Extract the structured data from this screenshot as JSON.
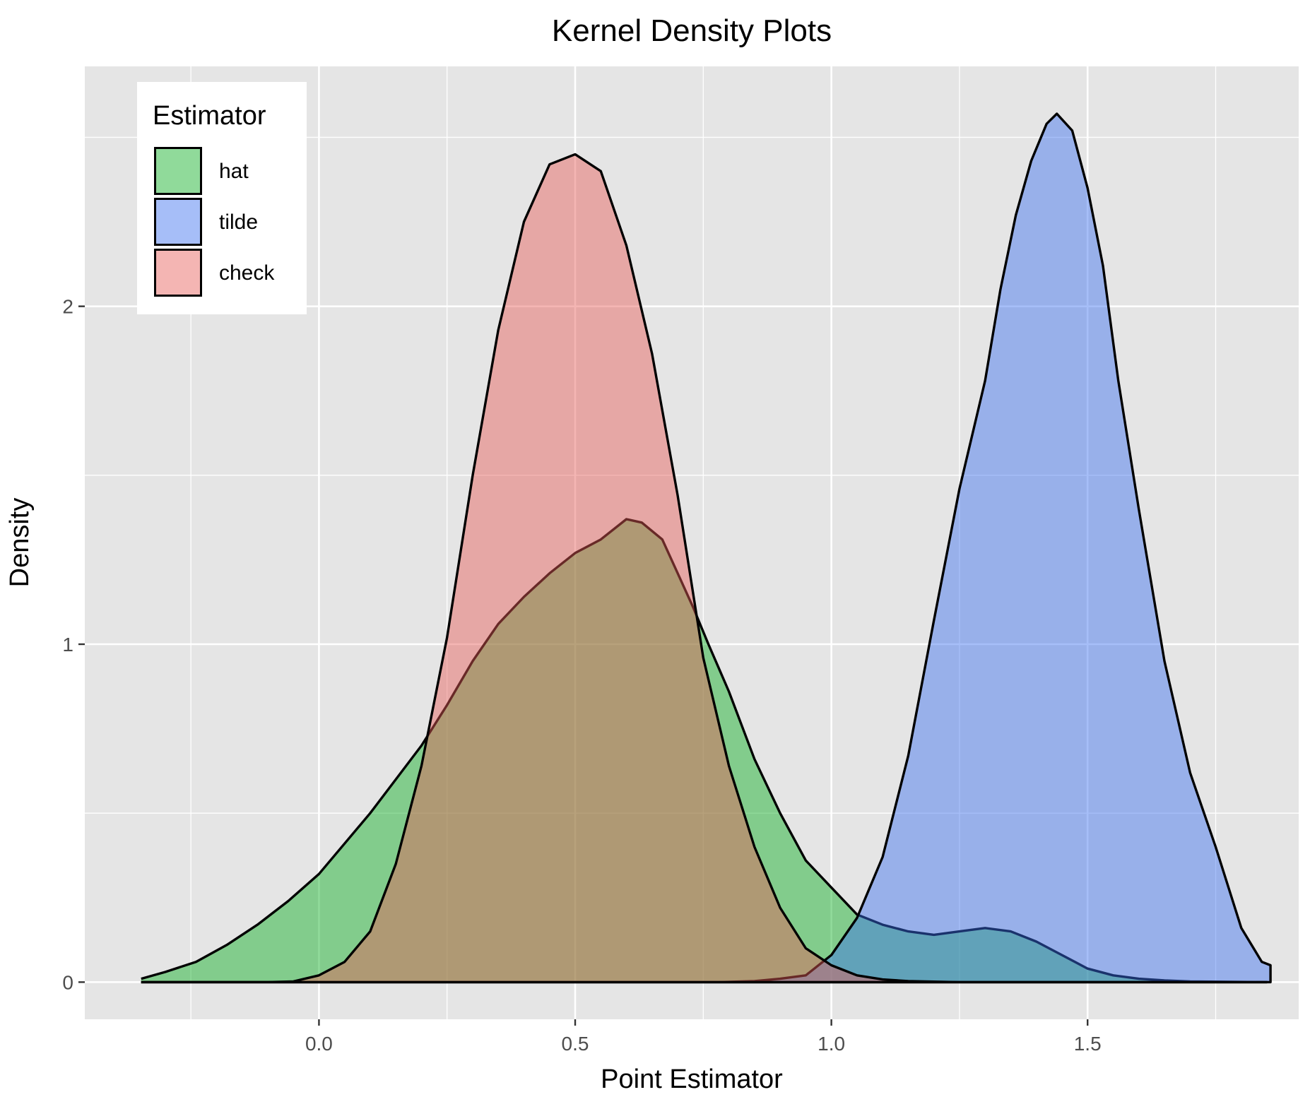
{
  "chart_data": {
    "type": "area",
    "title": "Kernel Density Plots",
    "xlabel": "Point Estimator",
    "ylabel": "Density",
    "xlim": [
      -0.457,
      1.912
    ],
    "ylim": [
      -0.11,
      2.71
    ],
    "x_ticks": [
      0.0,
      0.5,
      1.0,
      1.5
    ],
    "x_tick_labels": [
      "0.0",
      "0.5",
      "1.0",
      "1.5"
    ],
    "y_ticks": [
      0,
      1,
      2
    ],
    "y_tick_labels": [
      "0",
      "1",
      "2"
    ],
    "grid": true,
    "legend": {
      "title": "Estimator",
      "position": "top-left"
    },
    "series": [
      {
        "name": "hat",
        "color": "#09ae1f",
        "points": [
          [
            -0.347,
            0.01
          ],
          [
            -0.3,
            0.03
          ],
          [
            -0.24,
            0.06
          ],
          [
            -0.18,
            0.11
          ],
          [
            -0.12,
            0.17
          ],
          [
            -0.06,
            0.24
          ],
          [
            0.0,
            0.32
          ],
          [
            0.05,
            0.41
          ],
          [
            0.1,
            0.5
          ],
          [
            0.15,
            0.6
          ],
          [
            0.2,
            0.7
          ],
          [
            0.25,
            0.82
          ],
          [
            0.3,
            0.95
          ],
          [
            0.35,
            1.06
          ],
          [
            0.4,
            1.14
          ],
          [
            0.45,
            1.21
          ],
          [
            0.5,
            1.27
          ],
          [
            0.55,
            1.31
          ],
          [
            0.6,
            1.37
          ],
          [
            0.63,
            1.36
          ],
          [
            0.67,
            1.31
          ],
          [
            0.7,
            1.21
          ],
          [
            0.73,
            1.11
          ],
          [
            0.76,
            1.0
          ],
          [
            0.8,
            0.86
          ],
          [
            0.85,
            0.66
          ],
          [
            0.9,
            0.5
          ],
          [
            0.95,
            0.36
          ],
          [
            1.0,
            0.28
          ],
          [
            1.05,
            0.2
          ],
          [
            1.1,
            0.17
          ],
          [
            1.15,
            0.15
          ],
          [
            1.2,
            0.14
          ],
          [
            1.25,
            0.15
          ],
          [
            1.3,
            0.16
          ],
          [
            1.35,
            0.15
          ],
          [
            1.4,
            0.12
          ],
          [
            1.45,
            0.08
          ],
          [
            1.5,
            0.04
          ],
          [
            1.55,
            0.02
          ],
          [
            1.6,
            0.01
          ],
          [
            1.65,
            0.005
          ],
          [
            1.7,
            0.002
          ],
          [
            1.85,
            0.0
          ]
        ]
      },
      {
        "name": "tilde",
        "color": "#3a6ff0",
        "points": [
          [
            -0.347,
            0.0
          ],
          [
            0.78,
            0.0
          ],
          [
            0.85,
            0.003
          ],
          [
            0.9,
            0.01
          ],
          [
            0.95,
            0.02
          ],
          [
            1.0,
            0.08
          ],
          [
            1.05,
            0.19
          ],
          [
            1.1,
            0.37
          ],
          [
            1.15,
            0.67
          ],
          [
            1.2,
            1.07
          ],
          [
            1.25,
            1.46
          ],
          [
            1.3,
            1.78
          ],
          [
            1.33,
            2.05
          ],
          [
            1.36,
            2.27
          ],
          [
            1.39,
            2.43
          ],
          [
            1.42,
            2.54
          ],
          [
            1.44,
            2.57
          ],
          [
            1.47,
            2.52
          ],
          [
            1.5,
            2.35
          ],
          [
            1.53,
            2.12
          ],
          [
            1.56,
            1.78
          ],
          [
            1.6,
            1.4
          ],
          [
            1.65,
            0.95
          ],
          [
            1.7,
            0.62
          ],
          [
            1.75,
            0.4
          ],
          [
            1.8,
            0.16
          ],
          [
            1.84,
            0.06
          ],
          [
            1.857,
            0.05
          ]
        ]
      },
      {
        "name": "check",
        "color": "#e65c56",
        "points": [
          [
            -0.347,
            0.0
          ],
          [
            -0.1,
            0.0
          ],
          [
            -0.05,
            0.002
          ],
          [
            0.0,
            0.02
          ],
          [
            0.05,
            0.06
          ],
          [
            0.1,
            0.15
          ],
          [
            0.15,
            0.35
          ],
          [
            0.2,
            0.64
          ],
          [
            0.25,
            1.02
          ],
          [
            0.3,
            1.5
          ],
          [
            0.35,
            1.93
          ],
          [
            0.4,
            2.25
          ],
          [
            0.45,
            2.42
          ],
          [
            0.5,
            2.45
          ],
          [
            0.55,
            2.4
          ],
          [
            0.6,
            2.18
          ],
          [
            0.65,
            1.86
          ],
          [
            0.7,
            1.44
          ],
          [
            0.75,
            0.96
          ],
          [
            0.8,
            0.64
          ],
          [
            0.85,
            0.4
          ],
          [
            0.9,
            0.22
          ],
          [
            0.95,
            0.1
          ],
          [
            1.0,
            0.05
          ],
          [
            1.05,
            0.02
          ],
          [
            1.1,
            0.008
          ],
          [
            1.15,
            0.003
          ],
          [
            1.25,
            0.0
          ],
          [
            1.85,
            0.0
          ]
        ]
      }
    ]
  }
}
